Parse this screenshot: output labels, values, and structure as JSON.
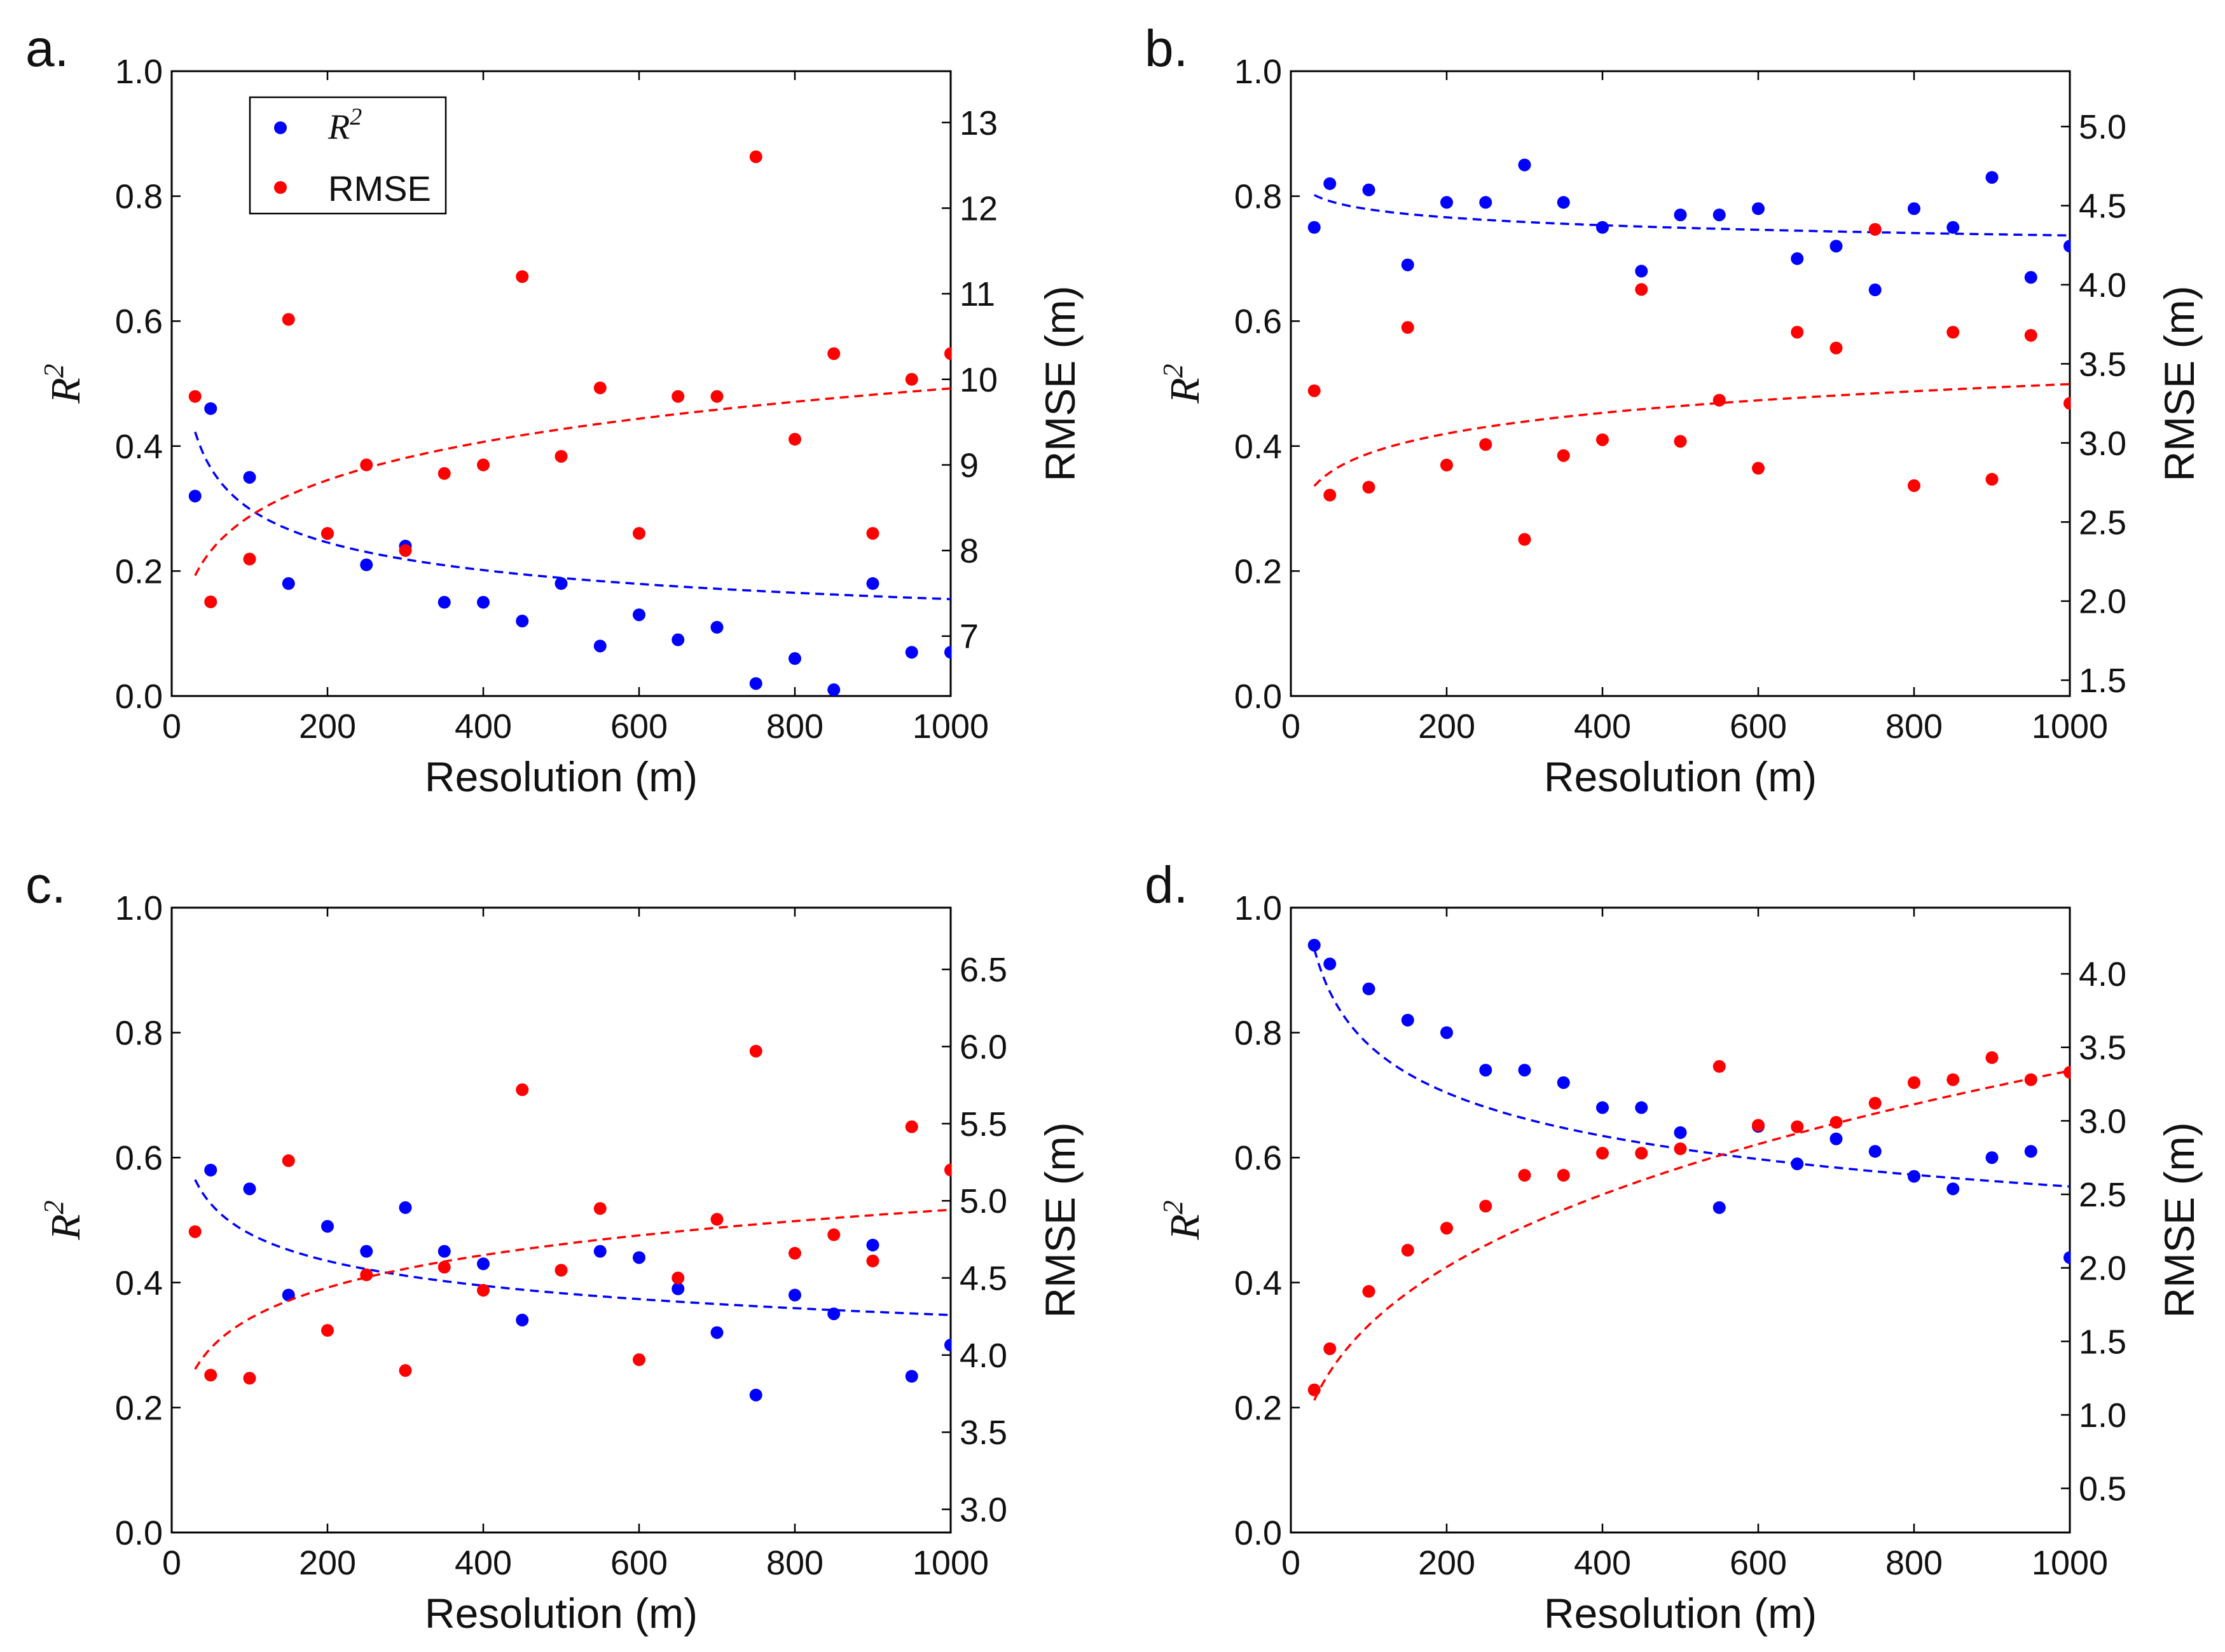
{
  "figure": {
    "legend": {
      "r2_label": "R",
      "r2_sup": "2",
      "rmse_label": "RMSE"
    }
  },
  "chart_data": [
    {
      "panel": "a.",
      "type": "scatter",
      "xlabel": "Resolution (m)",
      "ylabel": "R",
      "ylabel_sup": "2",
      "y2label": "RMSE (m)",
      "xlim": [
        0,
        1000
      ],
      "ylim": [
        0,
        1
      ],
      "y2lim": [
        6.3,
        13.6
      ],
      "xticks": [
        0,
        200,
        400,
        600,
        800,
        1000
      ],
      "yticks": [
        0.0,
        0.2,
        0.4,
        0.6,
        0.8,
        1.0
      ],
      "y2ticks": [
        7,
        8,
        9,
        10,
        11,
        12,
        13
      ],
      "y2tick_decimals": 0,
      "legend": "top-left",
      "series": [
        {
          "name": "R2",
          "axis": "left",
          "color": "#0000ff",
          "x": [
            30,
            50,
            100,
            150,
            200,
            250,
            300,
            350,
            400,
            450,
            500,
            550,
            600,
            650,
            700,
            750,
            800,
            850,
            900,
            950,
            1000
          ],
          "y": [
            0.32,
            0.46,
            0.35,
            0.18,
            0.26,
            0.21,
            0.24,
            0.15,
            0.15,
            0.12,
            0.18,
            0.08,
            0.13,
            0.09,
            0.11,
            0.02,
            0.06,
            0.01,
            0.18,
            0.07,
            0.07
          ],
          "fit": {
            "a": 1.118,
            "b": -0.286,
            "color": "#0000ff"
          }
        },
        {
          "name": "RMSE",
          "axis": "right",
          "color": "#ff0000",
          "x": [
            30,
            50,
            100,
            150,
            200,
            250,
            300,
            350,
            400,
            450,
            500,
            550,
            600,
            650,
            700,
            750,
            800,
            850,
            900,
            950,
            1000
          ],
          "y": [
            9.8,
            7.4,
            7.9,
            10.7,
            8.2,
            9.0,
            8.0,
            8.9,
            9.0,
            11.2,
            9.1,
            9.9,
            8.2,
            9.8,
            9.8,
            12.6,
            9.3,
            10.3,
            8.2,
            10.0,
            10.3
          ],
          "fit": {
            "a": 6.05,
            "b": 0.0712,
            "color": "#ff0000"
          }
        }
      ]
    },
    {
      "panel": "b.",
      "type": "scatter",
      "xlabel": "Resolution (m)",
      "ylabel": "R",
      "ylabel_sup": "2",
      "y2label": "RMSE (m)",
      "xlim": [
        0,
        1000
      ],
      "ylim": [
        0,
        1
      ],
      "y2lim": [
        1.4,
        5.35
      ],
      "xticks": [
        0,
        200,
        400,
        600,
        800,
        1000
      ],
      "yticks": [
        0.0,
        0.2,
        0.4,
        0.6,
        0.8,
        1.0
      ],
      "y2ticks": [
        1.5,
        2.0,
        2.5,
        3.0,
        3.5,
        4.0,
        4.5,
        5.0
      ],
      "y2tick_decimals": 1,
      "series": [
        {
          "name": "R2",
          "axis": "left",
          "color": "#0000ff",
          "x": [
            30,
            50,
            100,
            150,
            200,
            250,
            300,
            350,
            400,
            450,
            500,
            550,
            600,
            650,
            700,
            750,
            800,
            850,
            900,
            950,
            1000
          ],
          "y": [
            0.75,
            0.82,
            0.81,
            0.69,
            0.79,
            0.79,
            0.85,
            0.79,
            0.75,
            0.68,
            0.77,
            0.77,
            0.78,
            0.7,
            0.72,
            0.65,
            0.78,
            0.75,
            0.83,
            0.67,
            0.72
          ],
          "fit": {
            "a": 0.87,
            "b": -0.024,
            "color": "#0000ff"
          }
        },
        {
          "name": "RMSE",
          "axis": "right",
          "color": "#ff0000",
          "x": [
            30,
            50,
            100,
            150,
            200,
            250,
            300,
            350,
            400,
            450,
            500,
            550,
            600,
            650,
            700,
            750,
            800,
            850,
            900,
            950,
            1000
          ],
          "y": [
            3.33,
            2.67,
            2.72,
            3.73,
            2.86,
            2.99,
            2.39,
            2.92,
            3.02,
            3.97,
            3.01,
            3.27,
            2.84,
            3.7,
            3.6,
            4.35,
            2.73,
            3.7,
            2.77,
            3.68,
            3.25
          ],
          "fit": {
            "a": 2.22,
            "b": 0.0605,
            "color": "#ff0000"
          }
        }
      ]
    },
    {
      "panel": "c.",
      "type": "scatter",
      "xlabel": "Resolution (m)",
      "ylabel": "R",
      "ylabel_sup": "2",
      "y2label": "RMSE (m)",
      "xlim": [
        0,
        1000
      ],
      "ylim": [
        0,
        1
      ],
      "y2lim": [
        2.85,
        6.9
      ],
      "xticks": [
        0,
        200,
        400,
        600,
        800,
        1000
      ],
      "yticks": [
        0.0,
        0.2,
        0.4,
        0.6,
        0.8,
        1.0
      ],
      "y2ticks": [
        3.0,
        3.5,
        4.0,
        4.5,
        5.0,
        5.5,
        6.0,
        6.5
      ],
      "y2tick_decimals": 1,
      "series": [
        {
          "name": "R2",
          "axis": "left",
          "color": "#0000ff",
          "x": [
            50,
            100,
            150,
            200,
            250,
            300,
            350,
            400,
            450,
            550,
            600,
            650,
            700,
            750,
            800,
            850,
            900,
            950,
            1000
          ],
          "y": [
            0.58,
            0.55,
            0.38,
            0.49,
            0.45,
            0.52,
            0.45,
            0.43,
            0.34,
            0.45,
            0.44,
            0.39,
            0.32,
            0.22,
            0.38,
            0.35,
            0.46,
            0.25,
            0.3
          ],
          "fit": {
            "a": 0.903,
            "b": -0.138,
            "color": "#0000ff"
          }
        },
        {
          "name": "RMSE",
          "axis": "right",
          "color": "#ff0000",
          "x": [
            30,
            50,
            100,
            150,
            200,
            250,
            300,
            350,
            400,
            450,
            500,
            550,
            600,
            650,
            700,
            750,
            800,
            850,
            900,
            950,
            1000
          ],
          "y": [
            4.8,
            3.87,
            3.85,
            5.26,
            4.16,
            4.52,
            3.9,
            4.57,
            4.42,
            5.72,
            4.55,
            4.95,
            3.97,
            4.5,
            4.88,
            5.97,
            4.66,
            4.78,
            4.61,
            5.48,
            5.2
          ],
          "fit": {
            "a": 3.113,
            "b": 0.0669,
            "color": "#ff0000"
          }
        }
      ]
    },
    {
      "panel": "d.",
      "type": "scatter",
      "xlabel": "Resolution (m)",
      "ylabel": "R",
      "ylabel_sup": "2",
      "y2label": "RMSE (m)",
      "xlim": [
        0,
        1000
      ],
      "ylim": [
        0,
        1
      ],
      "y2lim": [
        0.2,
        4.45
      ],
      "xticks": [
        0,
        200,
        400,
        600,
        800,
        1000
      ],
      "yticks": [
        0.0,
        0.2,
        0.4,
        0.6,
        0.8,
        1.0
      ],
      "y2ticks": [
        0.5,
        1.0,
        1.5,
        2.0,
        2.5,
        3.0,
        3.5,
        4.0
      ],
      "y2tick_decimals": 1,
      "series": [
        {
          "name": "R2",
          "axis": "left",
          "color": "#0000ff",
          "x": [
            30,
            50,
            100,
            150,
            200,
            250,
            300,
            350,
            400,
            450,
            500,
            550,
            600,
            650,
            700,
            750,
            800,
            850,
            900,
            950,
            1000
          ],
          "y": [
            0.94,
            0.91,
            0.87,
            0.82,
            0.8,
            0.74,
            0.74,
            0.72,
            0.68,
            0.68,
            0.64,
            0.52,
            0.65,
            0.59,
            0.63,
            0.61,
            0.57,
            0.55,
            0.6,
            0.61,
            0.44
          ],
          "fit": {
            "a": 1.55,
            "b": -0.149,
            "color": "#0000ff"
          }
        },
        {
          "name": "RMSE",
          "axis": "right",
          "color": "#ff0000",
          "x": [
            30,
            50,
            100,
            150,
            200,
            250,
            300,
            350,
            400,
            450,
            500,
            550,
            600,
            650,
            700,
            750,
            800,
            850,
            900,
            950,
            1000
          ],
          "y": [
            1.17,
            1.45,
            1.84,
            2.12,
            2.27,
            2.42,
            2.63,
            2.63,
            2.78,
            2.78,
            2.81,
            3.37,
            2.97,
            2.96,
            2.99,
            3.12,
            3.26,
            3.28,
            3.43,
            3.28,
            3.33
          ],
          "fit": {
            "a": 0.374,
            "b": 0.317,
            "color": "#ff0000"
          }
        }
      ]
    }
  ]
}
